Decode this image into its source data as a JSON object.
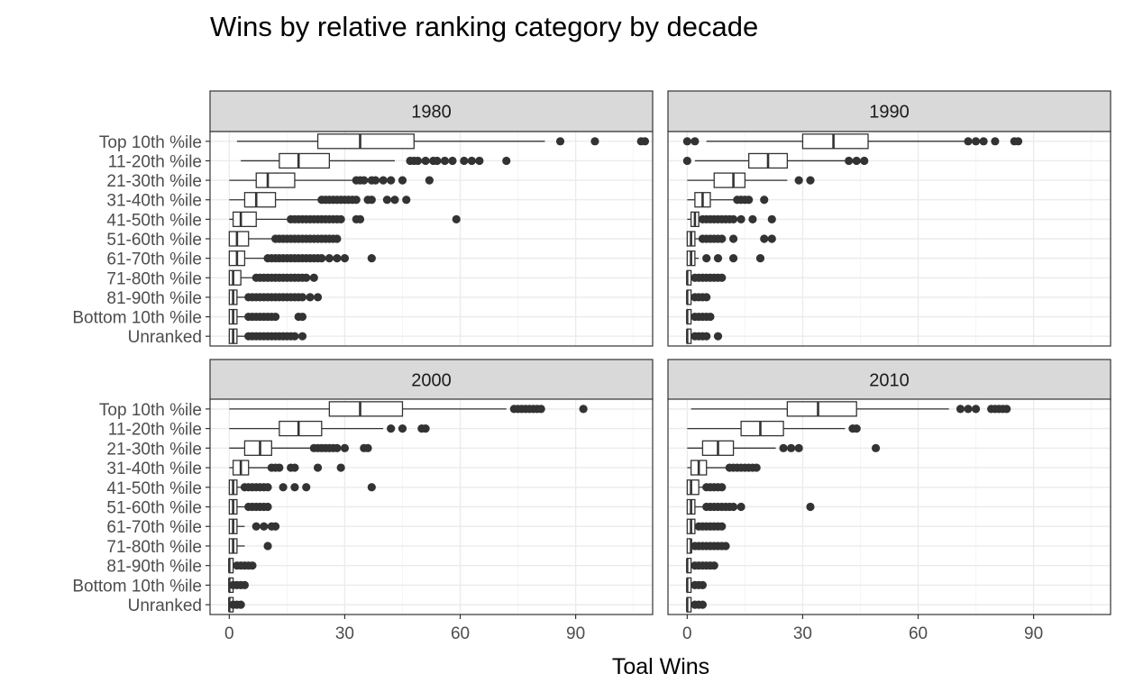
{
  "chart_data": {
    "type": "boxplot",
    "title": "Wins by relative ranking category by decade",
    "xlabel": "Toal Wins",
    "ylabel": "",
    "xlim": [
      -5,
      110
    ],
    "x_ticks": [
      0,
      30,
      60,
      90
    ],
    "grid": true,
    "facet_layout": "2x2",
    "colors": {
      "box_fill": "#ffffff",
      "line": "#333333",
      "outlier": "#333333",
      "strip_fill": "#d9d9d9",
      "strip_border": "#333333",
      "grid_major": "#ebebeb",
      "grid_minor": "#f5f5f5",
      "panel_border": "#333333"
    },
    "categories": [
      "Unranked",
      "Bottom 10th %ile",
      "81-90th %ile",
      "71-80th %ile",
      "61-70th %ile",
      "51-60th %ile",
      "41-50th %ile",
      "31-40th %ile",
      "21-30th %ile",
      "11-20th %ile",
      "Top 10th %ile"
    ],
    "panels": [
      {
        "label": "1980",
        "stats": [
          {
            "min": 0,
            "q1": 0,
            "median": 1,
            "q3": 2,
            "max": 5,
            "outliers": [
              5,
              6,
              7,
              8,
              9,
              10,
              11,
              12,
              13,
              14,
              15,
              16,
              17,
              19
            ]
          },
          {
            "min": 0,
            "q1": 0,
            "median": 1,
            "q3": 2,
            "max": 5,
            "outliers": [
              5,
              6,
              7,
              8,
              9,
              10,
              11,
              12,
              18,
              19
            ]
          },
          {
            "min": 0,
            "q1": 0,
            "median": 1,
            "q3": 2,
            "max": 5,
            "outliers": [
              5,
              6,
              7,
              8,
              9,
              10,
              11,
              12,
              13,
              14,
              15,
              16,
              17,
              18,
              19,
              21,
              23
            ]
          },
          {
            "min": 0,
            "q1": 0,
            "median": 1,
            "q3": 3,
            "max": 7,
            "outliers": [
              7,
              8,
              9,
              10,
              11,
              12,
              13,
              14,
              15,
              16,
              17,
              18,
              19,
              20,
              22
            ]
          },
          {
            "min": 0,
            "q1": 0,
            "median": 2,
            "q3": 4,
            "max": 10,
            "outliers": [
              10,
              11,
              12,
              13,
              14,
              15,
              16,
              17,
              18,
              19,
              20,
              21,
              22,
              23,
              24,
              26,
              28,
              30,
              37
            ]
          },
          {
            "min": 0,
            "q1": 0,
            "median": 2,
            "q3": 5,
            "max": 12,
            "outliers": [
              12,
              13,
              14,
              15,
              16,
              17,
              18,
              19,
              20,
              21,
              22,
              23,
              24,
              25,
              26,
              27,
              28
            ]
          },
          {
            "min": 0,
            "q1": 1,
            "median": 3,
            "q3": 7,
            "max": 16,
            "outliers": [
              16,
              17,
              18,
              19,
              20,
              21,
              22,
              23,
              24,
              25,
              26,
              27,
              28,
              29,
              33,
              34,
              59
            ]
          },
          {
            "min": 0,
            "q1": 4,
            "median": 7,
            "q3": 12,
            "max": 24,
            "outliers": [
              24,
              25,
              26,
              27,
              28,
              29,
              30,
              31,
              32,
              33,
              36,
              37,
              41,
              43,
              46
            ]
          },
          {
            "min": 0,
            "q1": 7,
            "median": 10,
            "q3": 17,
            "max": 32,
            "outliers": [
              33,
              34,
              35,
              37,
              38,
              40,
              42,
              45,
              52
            ]
          },
          {
            "min": 3,
            "q1": 13,
            "median": 18,
            "q3": 26,
            "max": 43,
            "outliers": [
              47,
              48,
              49,
              51,
              53,
              54,
              56,
              58,
              61,
              63,
              65,
              72
            ]
          },
          {
            "min": 2,
            "q1": 23,
            "median": 34,
            "q3": 48,
            "max": 82,
            "outliers": [
              86,
              95,
              107,
              108
            ]
          }
        ]
      },
      {
        "label": "1990",
        "stats": [
          {
            "min": 0,
            "q1": 0,
            "median": 0,
            "q3": 1,
            "max": 2,
            "outliers": [
              2,
              3,
              4,
              5,
              8
            ]
          },
          {
            "min": 0,
            "q1": 0,
            "median": 0,
            "q3": 1,
            "max": 2,
            "outliers": [
              2,
              3,
              4,
              5,
              6
            ]
          },
          {
            "min": 0,
            "q1": 0,
            "median": 0,
            "q3": 1,
            "max": 2,
            "outliers": [
              2,
              3,
              4,
              5
            ]
          },
          {
            "min": 0,
            "q1": 0,
            "median": 0,
            "q3": 1,
            "max": 2,
            "outliers": [
              2,
              3,
              4,
              5,
              6,
              7,
              8,
              9
            ]
          },
          {
            "min": 0,
            "q1": 0,
            "median": 1,
            "q3": 2,
            "max": 3,
            "outliers": [
              5,
              8,
              12,
              19
            ]
          },
          {
            "min": 0,
            "q1": 0,
            "median": 1,
            "q3": 2,
            "max": 3,
            "outliers": [
              4,
              5,
              6,
              7,
              8,
              9,
              12,
              20,
              22
            ]
          },
          {
            "min": 0,
            "q1": 1,
            "median": 2,
            "q3": 3,
            "max": 4,
            "outliers": [
              4,
              5,
              6,
              7,
              8,
              9,
              10,
              11,
              12,
              14,
              17,
              22
            ]
          },
          {
            "min": 0,
            "q1": 2,
            "median": 4,
            "q3": 6,
            "max": 13,
            "outliers": [
              13,
              14,
              15,
              16,
              20
            ]
          },
          {
            "min": 0,
            "q1": 7,
            "median": 12,
            "q3": 15,
            "max": 26,
            "outliers": [
              29,
              32
            ]
          },
          {
            "min": 2,
            "q1": 16,
            "median": 21,
            "q3": 26,
            "max": 41,
            "outliers": [
              0,
              42,
              44,
              46
            ]
          },
          {
            "min": 5,
            "q1": 30,
            "median": 38,
            "q3": 47,
            "max": 72,
            "outliers": [
              0,
              2,
              73,
              75,
              77,
              80,
              85,
              86
            ]
          }
        ]
      },
      {
        "label": "2000",
        "stats": [
          {
            "min": 0,
            "q1": 0,
            "median": 0,
            "q3": 1,
            "max": 1,
            "outliers": [
              1,
              2,
              3
            ]
          },
          {
            "min": 0,
            "q1": 0,
            "median": 0,
            "q3": 1,
            "max": 1,
            "outliers": [
              1,
              2,
              3,
              4
            ]
          },
          {
            "min": 0,
            "q1": 0,
            "median": 0,
            "q3": 1,
            "max": 2,
            "outliers": [
              2,
              3,
              4,
              5,
              6
            ]
          },
          {
            "min": 0,
            "q1": 0,
            "median": 1,
            "q3": 2,
            "max": 4,
            "outliers": [
              10
            ]
          },
          {
            "min": 0,
            "q1": 0,
            "median": 1,
            "q3": 2,
            "max": 4,
            "outliers": [
              7,
              9,
              11,
              12
            ]
          },
          {
            "min": 0,
            "q1": 0,
            "median": 1,
            "q3": 2,
            "max": 4,
            "outliers": [
              5,
              6,
              7,
              8,
              9,
              10
            ]
          },
          {
            "min": 0,
            "q1": 0,
            "median": 1,
            "q3": 2,
            "max": 4,
            "outliers": [
              4,
              5,
              6,
              7,
              8,
              9,
              10,
              14,
              17,
              20,
              37
            ]
          },
          {
            "min": 0,
            "q1": 1,
            "median": 3,
            "q3": 5,
            "max": 10,
            "outliers": [
              11,
              12,
              13,
              16,
              17,
              23,
              29
            ]
          },
          {
            "min": 0,
            "q1": 4,
            "median": 8,
            "q3": 11,
            "max": 21,
            "outliers": [
              22,
              23,
              24,
              25,
              26,
              27,
              28,
              30,
              35,
              36
            ]
          },
          {
            "min": 0,
            "q1": 13,
            "median": 18,
            "q3": 24,
            "max": 40,
            "outliers": [
              42,
              45,
              50,
              51
            ]
          },
          {
            "min": 0,
            "q1": 26,
            "median": 34,
            "q3": 45,
            "max": 72,
            "outliers": [
              74,
              75,
              76,
              77,
              78,
              79,
              80,
              81,
              92
            ]
          }
        ]
      },
      {
        "label": "2010",
        "stats": [
          {
            "min": 0,
            "q1": 0,
            "median": 0,
            "q3": 1,
            "max": 2,
            "outliers": [
              2,
              3,
              4
            ]
          },
          {
            "min": 0,
            "q1": 0,
            "median": 0,
            "q3": 1,
            "max": 2,
            "outliers": [
              2,
              3,
              4
            ]
          },
          {
            "min": 0,
            "q1": 0,
            "median": 0,
            "q3": 1,
            "max": 2,
            "outliers": [
              2,
              3,
              4,
              5,
              6,
              7
            ]
          },
          {
            "min": 0,
            "q1": 0,
            "median": 1,
            "q3": 1,
            "max": 2,
            "outliers": [
              2,
              3,
              4,
              5,
              6,
              7,
              8,
              9,
              10
            ]
          },
          {
            "min": 0,
            "q1": 0,
            "median": 1,
            "q3": 2,
            "max": 2,
            "outliers": [
              3,
              4,
              5,
              6,
              7,
              8,
              9
            ]
          },
          {
            "min": 0,
            "q1": 0,
            "median": 1,
            "q3": 2,
            "max": 4,
            "outliers": [
              5,
              6,
              7,
              8,
              9,
              10,
              11,
              12,
              14,
              32
            ]
          },
          {
            "min": 0,
            "q1": 0,
            "median": 1,
            "q3": 3,
            "max": 5,
            "outliers": [
              5,
              6,
              7,
              8,
              9
            ]
          },
          {
            "min": 0,
            "q1": 1,
            "median": 3,
            "q3": 5,
            "max": 10,
            "outliers": [
              11,
              12,
              13,
              14,
              15,
              16,
              17,
              18
            ]
          },
          {
            "min": 0,
            "q1": 4,
            "median": 8,
            "q3": 12,
            "max": 23,
            "outliers": [
              25,
              27,
              29,
              49
            ]
          },
          {
            "min": 0,
            "q1": 14,
            "median": 19,
            "q3": 25,
            "max": 41,
            "outliers": [
              43,
              44
            ]
          },
          {
            "min": 1,
            "q1": 26,
            "median": 34,
            "q3": 44,
            "max": 68,
            "outliers": [
              71,
              73,
              75,
              79,
              80,
              81,
              82,
              83
            ]
          }
        ]
      }
    ]
  }
}
